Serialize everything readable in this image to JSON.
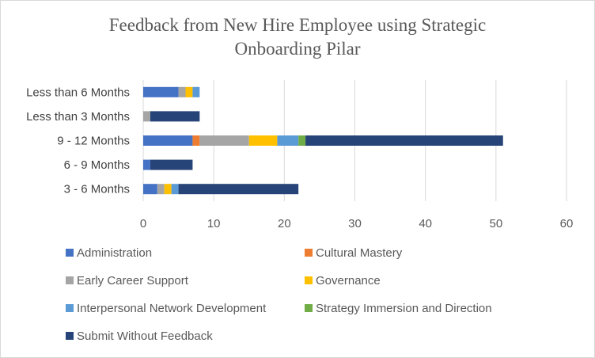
{
  "chart_data": {
    "type": "bar",
    "orientation": "horizontal",
    "stacked": true,
    "title": "Feedback from New Hire Employee using Strategic Onboarding Pilar",
    "categories": [
      "3 - 6 Months",
      "6 - 9 Months",
      "9 - 12 Months",
      "Less than 3 Months",
      "Less than 6 Months"
    ],
    "series": [
      {
        "name": "Administration",
        "color": "#4472C4",
        "values": [
          2,
          1,
          7,
          0,
          5
        ]
      },
      {
        "name": "Cultural Mastery",
        "color": "#ED7D31",
        "values": [
          0,
          0,
          1,
          0,
          0
        ]
      },
      {
        "name": "Early Career Support",
        "color": "#A5A5A5",
        "values": [
          1,
          0,
          7,
          1,
          1
        ]
      },
      {
        "name": "Governance",
        "color": "#FFC000",
        "values": [
          1,
          0,
          4,
          0,
          1
        ]
      },
      {
        "name": "Interpersonal Network Development",
        "color": "#5B9BD5",
        "values": [
          1,
          0,
          3,
          0,
          1
        ]
      },
      {
        "name": "Strategy Immersion and Direction",
        "color": "#70AD47",
        "values": [
          0,
          0,
          1,
          0,
          0
        ]
      },
      {
        "name": "Submit Without Feedback",
        "color": "#264478",
        "values": [
          17,
          6,
          28,
          7,
          0
        ]
      }
    ],
    "xlim": [
      0,
      60
    ],
    "xticks": [
      0,
      10,
      20,
      30,
      40,
      50,
      60
    ],
    "grid": true,
    "legend": "bottom"
  }
}
